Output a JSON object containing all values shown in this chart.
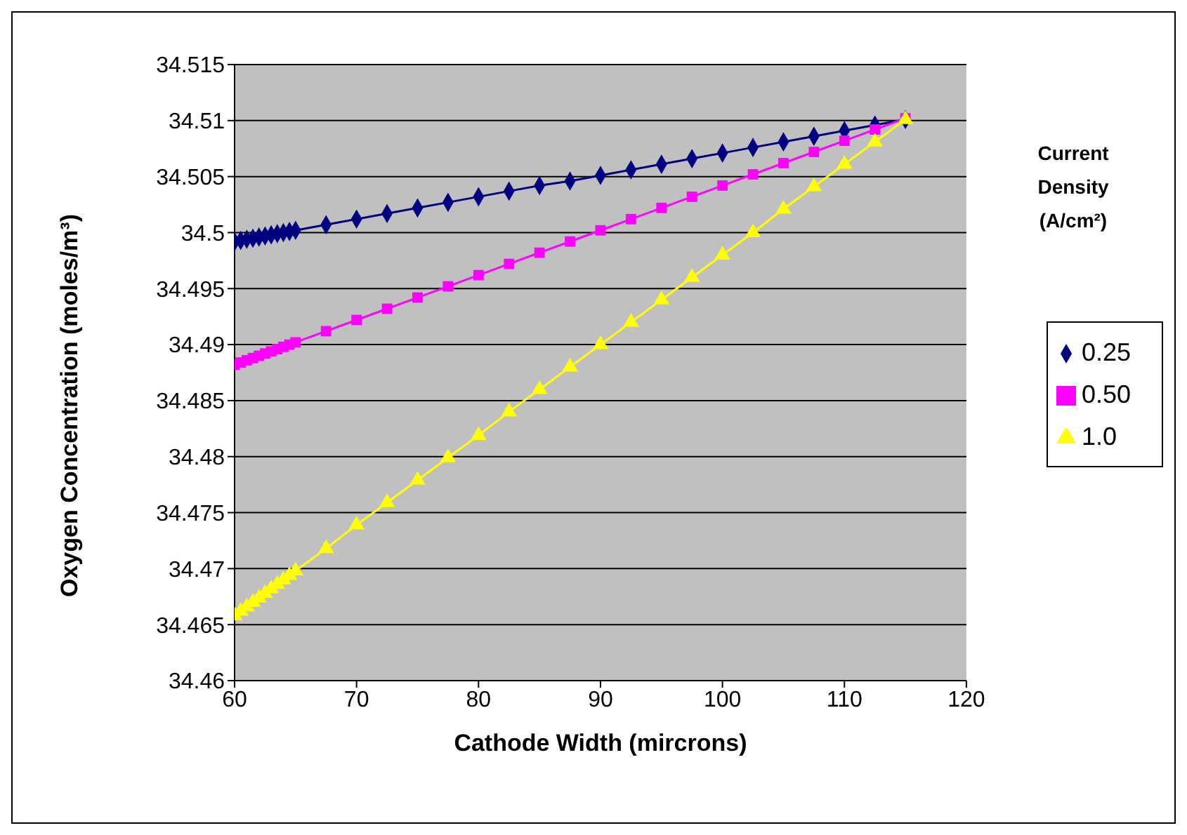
{
  "chart_data": {
    "type": "line",
    "xlabel": "Cathode Width (mircrons)",
    "ylabel": "Oxygen Concentration (moles/m³)",
    "legend_title": "Current Density (A/cm²)",
    "x": [
      60,
      60.5,
      61,
      61.5,
      62,
      62.5,
      63,
      63.5,
      64,
      64.5,
      65,
      67.5,
      70,
      72.5,
      75,
      77.5,
      80,
      82.5,
      85,
      87.5,
      90,
      92.5,
      95,
      97.5,
      100,
      102.5,
      105,
      107.5,
      110,
      112.5,
      115
    ],
    "xlim": [
      60,
      120
    ],
    "xticks": [
      60,
      70,
      80,
      90,
      100,
      110,
      120
    ],
    "ylim": [
      34.46,
      34.515
    ],
    "yticks": [
      34.46,
      34.465,
      34.47,
      34.475,
      34.48,
      34.485,
      34.49,
      34.495,
      34.5,
      34.505,
      34.51,
      34.515
    ],
    "grid": "y",
    "legend": "right",
    "line_style": "solid",
    "series": [
      {
        "name": "0.25",
        "color": "#000080",
        "marker": "diamond",
        "values": [
          34.4992,
          34.4993,
          34.4994,
          34.4995,
          34.4996,
          34.4997,
          34.4998,
          34.4999,
          34.5,
          34.5001,
          34.5002,
          34.5007,
          34.5012,
          34.5017,
          34.5022,
          34.5027,
          34.5032,
          34.5037,
          34.5042,
          34.5046,
          34.5051,
          34.5056,
          34.5061,
          34.5066,
          34.5071,
          34.5076,
          34.5081,
          34.5086,
          34.5091,
          34.5096,
          34.5101
        ]
      },
      {
        "name": "0.50",
        "color": "#ff00ff",
        "marker": "square",
        "values": [
          34.4882,
          34.4884,
          34.4886,
          34.4888,
          34.489,
          34.4892,
          34.4894,
          34.4896,
          34.4898,
          34.49,
          34.4902,
          34.4912,
          34.4922,
          34.4932,
          34.4942,
          34.4952,
          34.4962,
          34.4972,
          34.4982,
          34.4992,
          34.5002,
          34.5012,
          34.5022,
          34.5032,
          34.5042,
          34.5052,
          34.5062,
          34.5072,
          34.5082,
          34.5092,
          34.5102
        ]
      },
      {
        "name": "1.0",
        "color": "#ffff00",
        "marker": "triangle",
        "values": [
          34.4658,
          34.4662,
          34.4666,
          34.467,
          34.4674,
          34.4678,
          34.4682,
          34.4686,
          34.469,
          34.4694,
          34.4698,
          34.4718,
          34.4739,
          34.4759,
          34.4779,
          34.4799,
          34.4819,
          34.484,
          34.486,
          34.488,
          34.49,
          34.492,
          34.494,
          34.496,
          34.498,
          34.5,
          34.5021,
          34.5041,
          34.5061,
          34.5081,
          34.5101
        ]
      }
    ]
  }
}
